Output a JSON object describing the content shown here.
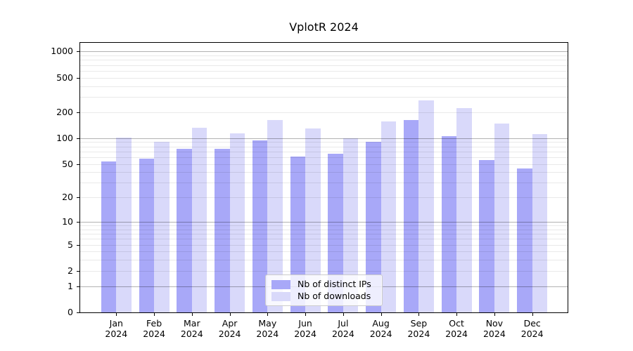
{
  "chart_data": {
    "type": "bar",
    "title": "VplotR 2024",
    "months": [
      "Jan",
      "Feb",
      "Mar",
      "Apr",
      "May",
      "Jun",
      "Jul",
      "Aug",
      "Sep",
      "Oct",
      "Nov",
      "Dec"
    ],
    "year": "2024",
    "series": [
      {
        "name": "Nb of distinct IPs",
        "color": "#a8a8f8",
        "values": [
          53,
          58,
          75,
          75,
          94,
          61,
          66,
          91,
          163,
          105,
          56,
          44
        ]
      },
      {
        "name": "Nb of downloads",
        "color": "#d9d9fa",
        "values": [
          101,
          91,
          131,
          113,
          161,
          130,
          99,
          155,
          272,
          224,
          147,
          111
        ]
      }
    ],
    "y_axis": {
      "scale": "log1p",
      "range": [
        0,
        1000
      ],
      "tick_values": [
        0,
        1,
        2,
        5,
        10,
        20,
        50,
        100,
        200,
        500,
        1000
      ],
      "tick_labels": [
        "0",
        "1",
        "2",
        "5",
        "10",
        "20",
        "50",
        "100",
        "200",
        "500",
        "1000"
      ],
      "major_grid_values": [
        1,
        10,
        100,
        1000
      ],
      "minor_grid_values": [
        2,
        3,
        4,
        5,
        6,
        7,
        8,
        9,
        20,
        30,
        40,
        50,
        60,
        70,
        80,
        90,
        200,
        300,
        400,
        500,
        600,
        700,
        800,
        900
      ]
    },
    "legend": {
      "position": "lower center",
      "entries": [
        "Nb of distinct IPs",
        "Nb of downloads"
      ]
    },
    "grid": true,
    "colors": {
      "distinct_ips": "#a8a8f8",
      "downloads": "#d9d9fa",
      "grid_major": "#b3b3b3",
      "grid_minor": "#e9e9e9",
      "spine": "#000000",
      "background": "#ffffff"
    }
  }
}
